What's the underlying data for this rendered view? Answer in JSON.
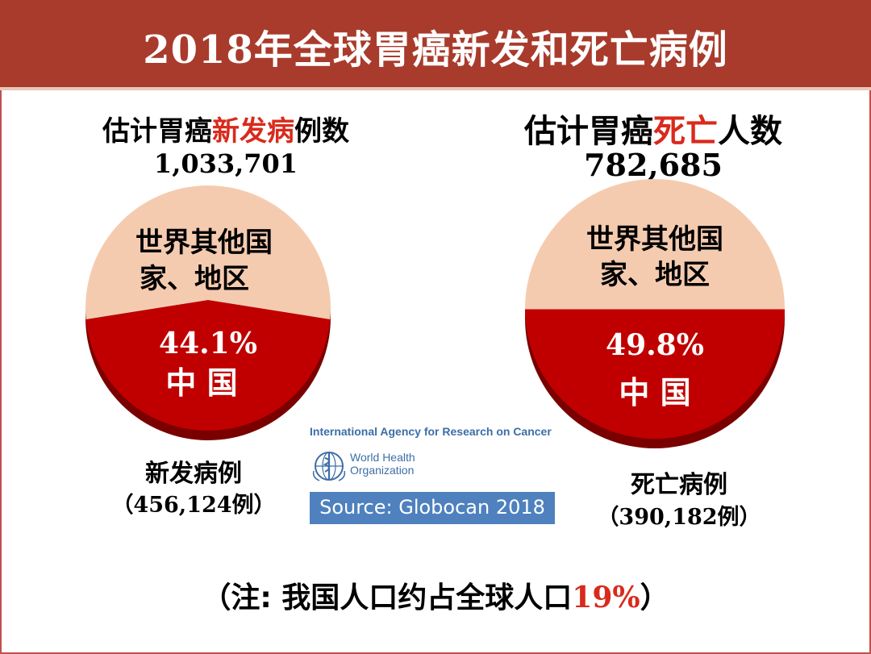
{
  "title": "2018年全球胃癌新发和死亡病例",
  "left": {
    "heading_prefix": "估计胃癌",
    "heading_highlight": "新发病",
    "heading_suffix": "例数",
    "total": "1,033,701",
    "rest_label_line1": "世界其他国",
    "rest_label_line2": "家、地区",
    "china_percent": "44.1%",
    "china_label": "中 国",
    "caption_line1": "新发病例",
    "caption_line2": "（456,124例）"
  },
  "right": {
    "heading_prefix": "估计胃癌",
    "heading_highlight": "死亡",
    "heading_suffix": "人数",
    "total": "782,685",
    "rest_label_line1": "世界其他国",
    "rest_label_line2": "家、地区",
    "china_percent": "49.8%",
    "china_label": "中 国",
    "caption_line1": "死亡病例",
    "caption_line2": "（390,182例）"
  },
  "logo": {
    "iarc": "International Agency for Research on Cancer",
    "who_line1": "World Health",
    "who_line2": "Organization",
    "source": "Source: Globocan 2018"
  },
  "note": {
    "prefix": "（注: 我国人口约占全球人口",
    "percent": "19%",
    "suffix": "）"
  },
  "colors": {
    "title_bg": "#a93b2c",
    "china_slice": "#c00000",
    "china_slice_shadow": "#7a0000",
    "rest_slice": "#f5cbb0",
    "rest_slice_shadow": "#d9a98c",
    "highlight_text": "#d92a1c"
  },
  "chart_data": [
    {
      "type": "pie",
      "title": "估计胃癌新发病例数 1,033,701",
      "slices": [
        {
          "label": "中国",
          "value": 44.1,
          "count": 456124
        },
        {
          "label": "世界其他国家、地区",
          "value": 55.9
        }
      ]
    },
    {
      "type": "pie",
      "title": "估计胃癌死亡人数 782,685",
      "slices": [
        {
          "label": "中国",
          "value": 49.8,
          "count": 390182
        },
        {
          "label": "世界其他国家、地区",
          "value": 50.2
        }
      ]
    }
  ]
}
